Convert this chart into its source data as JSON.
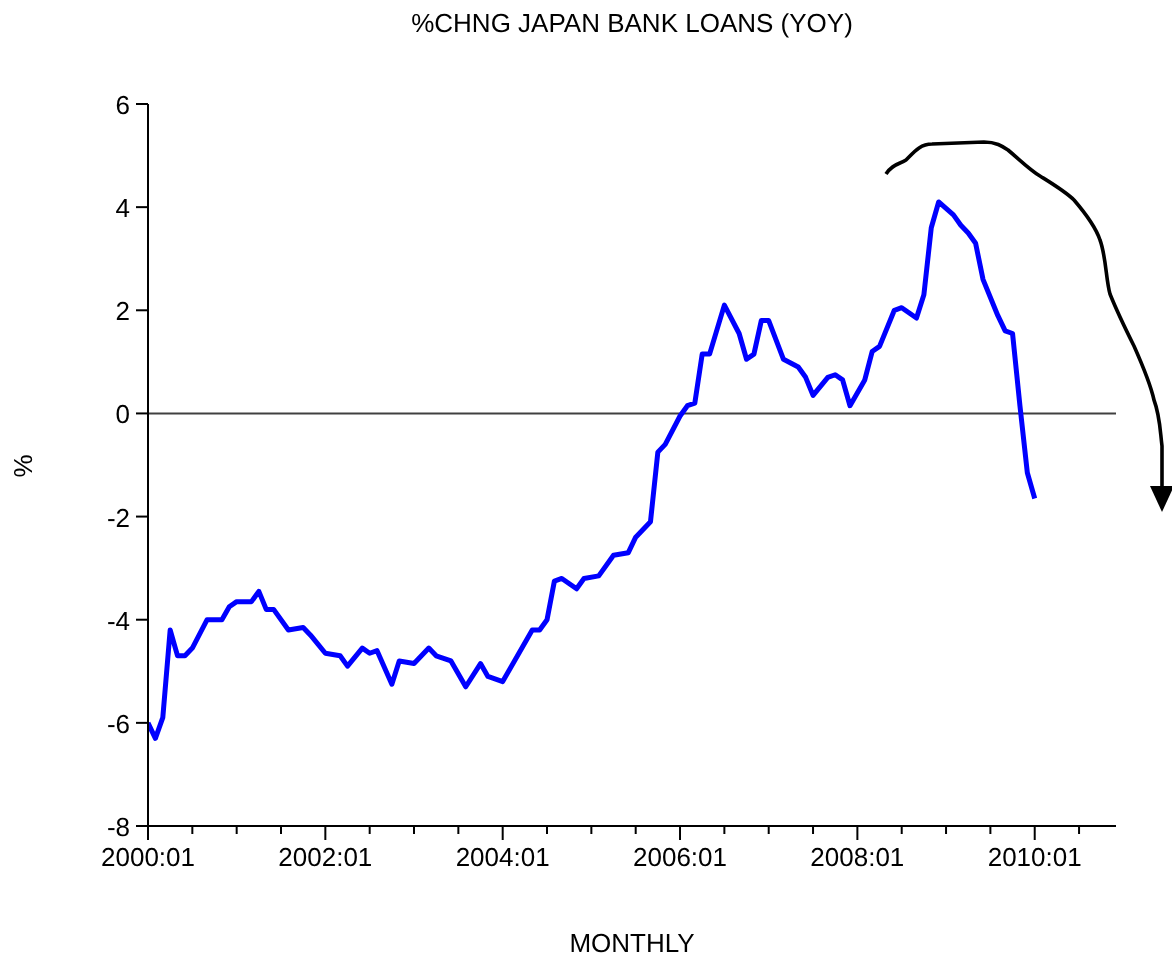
{
  "chart_data": {
    "type": "line",
    "title": "%CHNG JAPAN BANK LOANS (YOY)",
    "xlabel": "MONTHLY",
    "ylabel": "%",
    "x": [
      "2000-01",
      "2000-02",
      "2000-03",
      "2000-04",
      "2000-05",
      "2000-06",
      "2000-07",
      "2000-09",
      "2000-11",
      "2000-12",
      "2001-01",
      "2001-03",
      "2001-04",
      "2001-05",
      "2001-06",
      "2001-08",
      "2001-10",
      "2001-11",
      "2002-01",
      "2002-03",
      "2002-04",
      "2002-06",
      "2002-07",
      "2002-08",
      "2002-10",
      "2002-11",
      "2003-01",
      "2003-03",
      "2003-04",
      "2003-06",
      "2003-08",
      "2003-10",
      "2003-11",
      "2004-01",
      "2004-03",
      "2004-05",
      "2004-06",
      "2004-07",
      "2004-08",
      "2004-09",
      "2004-11",
      "2004-12",
      "2005-02",
      "2005-04",
      "2005-06",
      "2005-07",
      "2005-09",
      "2005-10",
      "2005-11",
      "2006-01",
      "2006-02",
      "2006-03",
      "2006-04",
      "2006-05",
      "2006-07",
      "2006-09",
      "2006-10",
      "2006-11",
      "2006-12",
      "2007-01",
      "2007-03",
      "2007-05",
      "2007-06",
      "2007-07",
      "2007-09",
      "2007-10",
      "2007-11",
      "2007-12",
      "2008-02",
      "2008-03",
      "2008-04",
      "2008-06",
      "2008-07",
      "2008-09",
      "2008-10",
      "2008-11",
      "2008-12",
      "2009-02",
      "2009-03",
      "2009-04",
      "2009-05",
      "2009-06",
      "2009-08",
      "2009-09",
      "2009-10",
      "2009-11",
      "2009-12",
      "2010-01"
    ],
    "series": [
      {
        "color": "#0000ff",
        "values": [
          -6.0,
          -6.3,
          -5.9,
          -4.2,
          -4.7,
          -4.7,
          -4.55,
          -4.0,
          -4.0,
          -3.75,
          -3.65,
          -3.65,
          -3.45,
          -3.8,
          -3.8,
          -4.2,
          -4.15,
          -4.3,
          -4.65,
          -4.7,
          -4.9,
          -4.55,
          -4.65,
          -4.6,
          -5.25,
          -4.8,
          -4.85,
          -4.55,
          -4.7,
          -4.8,
          -5.3,
          -4.85,
          -5.1,
          -5.2,
          -4.7,
          -4.2,
          -4.2,
          -4.0,
          -3.25,
          -3.2,
          -3.4,
          -3.2,
          -3.15,
          -2.75,
          -2.7,
          -2.4,
          -2.1,
          -0.75,
          -0.6,
          -0.05,
          0.15,
          0.2,
          1.15,
          1.15,
          2.1,
          1.55,
          1.05,
          1.15,
          1.8,
          1.8,
          1.05,
          0.9,
          0.7,
          0.35,
          0.7,
          0.75,
          0.65,
          0.15,
          0.65,
          1.2,
          1.3,
          2.0,
          2.05,
          1.85,
          2.3,
          3.6,
          4.1,
          3.85,
          3.65,
          3.5,
          3.3,
          2.6,
          1.9,
          1.6,
          1.55,
          0.15,
          -1.15,
          -1.65
        ]
      }
    ],
    "xlim": [
      "2000-01",
      "2010-12"
    ],
    "xticks": [
      {
        "value": "2000-01",
        "label": "2000:01"
      },
      {
        "value": "2000-07",
        "label": null
      },
      {
        "value": "2001-01",
        "label": null
      },
      {
        "value": "2001-07",
        "label": null
      },
      {
        "value": "2002-01",
        "label": "2002:01"
      },
      {
        "value": "2002-07",
        "label": null
      },
      {
        "value": "2003-01",
        "label": null
      },
      {
        "value": "2003-07",
        "label": null
      },
      {
        "value": "2004-01",
        "label": "2004:01"
      },
      {
        "value": "2004-07",
        "label": null
      },
      {
        "value": "2005-01",
        "label": null
      },
      {
        "value": "2005-07",
        "label": null
      },
      {
        "value": "2006-01",
        "label": "2006:01"
      },
      {
        "value": "2006-07",
        "label": null
      },
      {
        "value": "2007-01",
        "label": null
      },
      {
        "value": "2007-07",
        "label": null
      },
      {
        "value": "2008-01",
        "label": "2008:01"
      },
      {
        "value": "2008-07",
        "label": null
      },
      {
        "value": "2009-01",
        "label": null
      },
      {
        "value": "2009-07",
        "label": null
      },
      {
        "value": "2010-01",
        "label": "2010:01"
      },
      {
        "value": "2010-07",
        "label": null
      }
    ],
    "ylim": [
      -8,
      6
    ],
    "yticks": [
      -8,
      -6,
      -4,
      -2,
      0,
      2,
      4,
      6
    ],
    "ref_lines": [
      {
        "axis": "y",
        "value": 0,
        "color": "#404040"
      }
    ],
    "grid": false,
    "legend": false,
    "marker": "none",
    "line_style": "solid"
  }
}
